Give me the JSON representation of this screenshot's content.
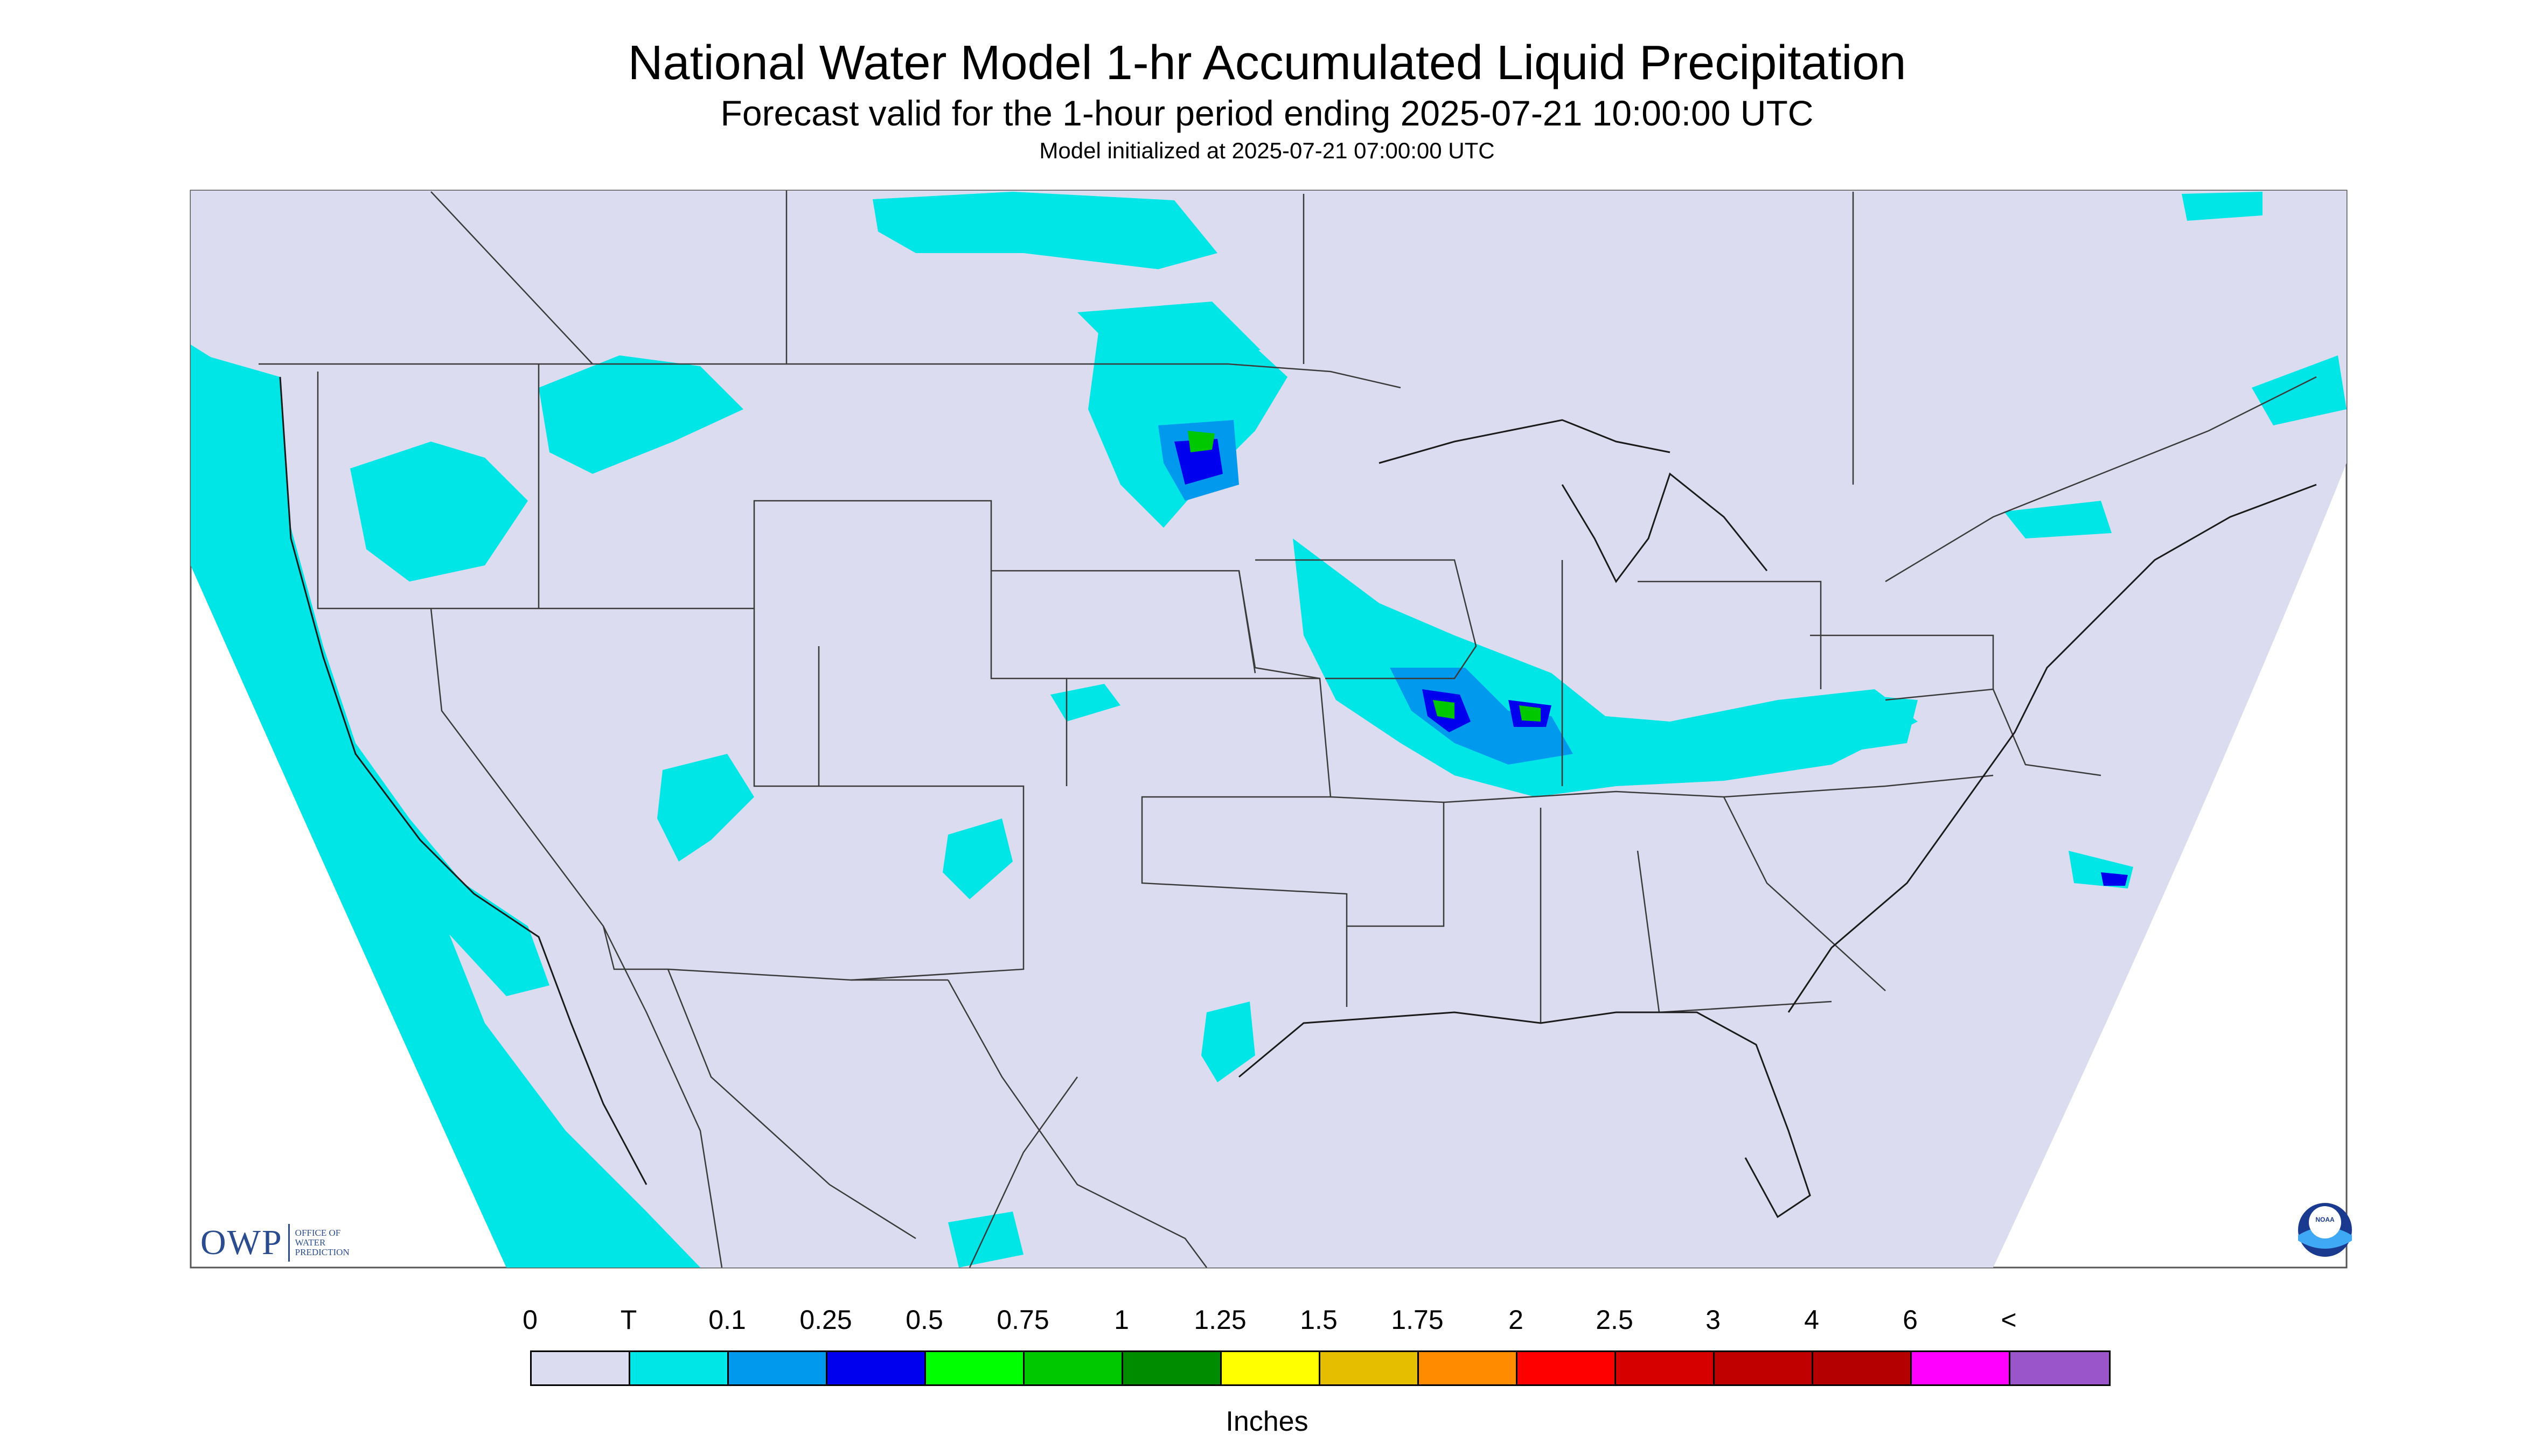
{
  "title": "National Water Model 1-hr Accumulated Liquid Precipitation",
  "subtitle": "Forecast valid for the 1-hour period ending 2025-07-21 10:00:00 UTC",
  "init_line": "Model initialized at 2025-07-21 07:00:00 UTC",
  "logo": {
    "owp_text": "OWP",
    "owp_line1": "OFFICE OF",
    "owp_line2": "WATER",
    "owp_line3": "PREDICTION",
    "noaa_text": "NOAA"
  },
  "legend": {
    "labels": [
      "0",
      "T",
      "0.1",
      "0.25",
      "0.5",
      "0.75",
      "1",
      "1.25",
      "1.5",
      "1.75",
      "2",
      "2.5",
      "3",
      "4",
      "6",
      "<"
    ],
    "colors": [
      "#dcdcf0",
      "#00e6e6",
      "#0099ee",
      "#0000ee",
      "#00ff00",
      "#00c800",
      "#008c00",
      "#ffff00",
      "#e6be00",
      "#ff8c00",
      "#ff0000",
      "#d70000",
      "#c00000",
      "#b40000",
      "#ff00ff",
      "#9955c9"
    ],
    "units": "Inches"
  },
  "colors": {
    "background_domain": "#dcdcf0",
    "trace": "#00e6e6",
    "light": "#0099ee",
    "moderate": "#0000ee",
    "heavy": "#00c800",
    "borders": "#3a3a3a"
  }
}
